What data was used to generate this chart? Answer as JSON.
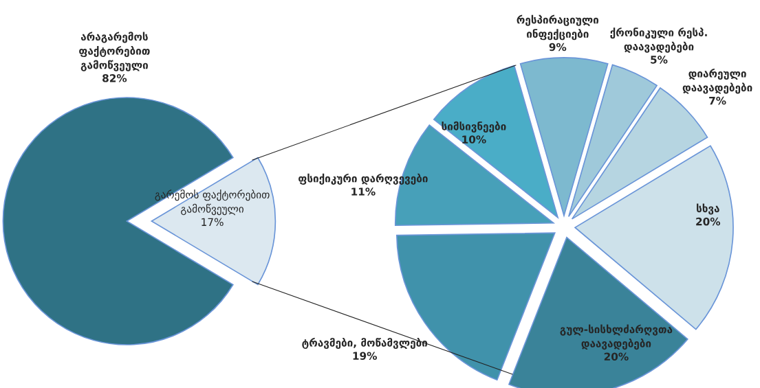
{
  "chart_data": [
    {
      "type": "pie",
      "categories": [
        "არაგარემოს\nფაქტორებით\nგამოწვეული",
        "გარემოს ფაქტორებით\nგამოწვეული"
      ],
      "values": [
        82,
        17
      ],
      "colors": [
        "#2f7285",
        "#dce8f0"
      ],
      "value_labels": [
        "82%",
        "17%"
      ]
    },
    {
      "type": "pie",
      "categories": [
        "რესპირაციული\nინფექციები",
        "ქრონიკული რესპ.\nდაავადებები",
        "დიარეული\nდაავადებები",
        "სხვა",
        "გულ-სისხლძარღვთა\nდაავადებები",
        "ტრავმები, მოწამვლები",
        "ფსიქიკური დარღვევები",
        "სიმსივნეები"
      ],
      "values": [
        9,
        5,
        7,
        20,
        20,
        19,
        11,
        10
      ],
      "colors": [
        "#7db9cf",
        "#9fc9da",
        "#b6d5e1",
        "#cde1ea",
        "#3a8399",
        "#4092ab",
        "#47a0b9",
        "#4aadc7"
      ],
      "value_labels": [
        "9%",
        "5%",
        "7%",
        "20%",
        "20%",
        "19%",
        "11%",
        "10%"
      ]
    }
  ]
}
